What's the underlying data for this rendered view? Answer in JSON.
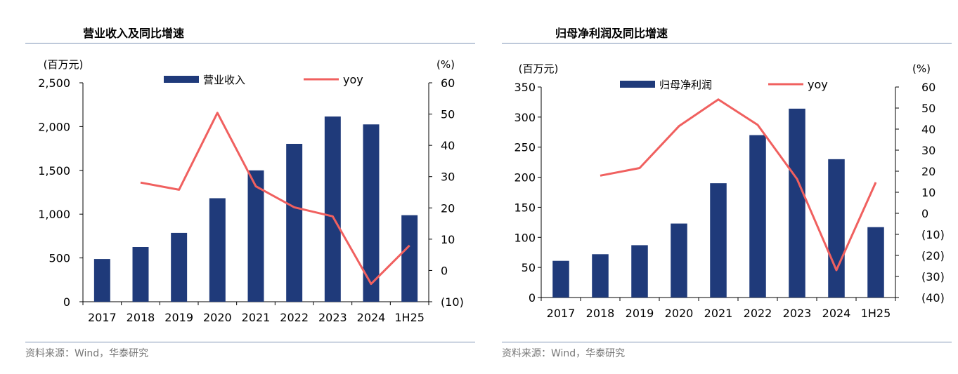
{
  "colors": {
    "bar": "#1f3a7a",
    "line": "#f0605f",
    "axis": "#000000",
    "rule": "#7f95b5",
    "source": "#777777"
  },
  "charts": [
    {
      "title": "营业收入及同比增速",
      "source": "资料来源：Wind，华泰研究",
      "left_unit": "(百万元)",
      "right_unit": "(%)",
      "left_ticks": [
        "0",
        "500",
        "1,000",
        "1,500",
        "2,000",
        "2,500"
      ],
      "right_ticks": [
        "(10)",
        "0",
        "10",
        "20",
        "30",
        "40",
        "50",
        "60"
      ],
      "legend_bar": "营业收入",
      "legend_line": "yoy"
    },
    {
      "title": "归母净利润及同比增速",
      "source": "资料来源：Wind，华泰研究",
      "left_unit": "(百万元)",
      "right_unit": "(%)",
      "left_ticks": [
        "0",
        "50",
        "100",
        "150",
        "200",
        "250",
        "300",
        "350"
      ],
      "right_ticks": [
        "(40)",
        "(30)",
        "(20)",
        "(10)",
        "0",
        "10",
        "20",
        "30",
        "40",
        "50",
        "60"
      ],
      "legend_bar": "归母净利润",
      "legend_line": "yoy"
    }
  ],
  "chart_data": [
    {
      "type": "bar",
      "categories": [
        "2017",
        "2018",
        "2019",
        "2020",
        "2021",
        "2022",
        "2023",
        "2024",
        "1H25"
      ],
      "series": [
        {
          "name": "营业收入",
          "type": "bar",
          "axis": "left",
          "values": [
            488,
            625,
            786,
            1182,
            1500,
            1803,
            2115,
            2025,
            988
          ]
        },
        {
          "name": "yoy",
          "type": "line",
          "axis": "right",
          "values": [
            null,
            28.1,
            25.8,
            50.4,
            26.9,
            20.2,
            17.3,
            -4.3,
            8.0
          ]
        }
      ],
      "ylim_left": [
        0,
        2500
      ],
      "ylim_right": [
        -10,
        60
      ]
    },
    {
      "type": "bar",
      "categories": [
        "2017",
        "2018",
        "2019",
        "2020",
        "2021",
        "2022",
        "2023",
        "2024",
        "1H25"
      ],
      "series": [
        {
          "name": "归母净利润",
          "type": "bar",
          "axis": "left",
          "values": [
            61,
            72,
            87,
            123,
            190,
            270,
            314,
            230,
            117
          ]
        },
        {
          "name": "yoy",
          "type": "line",
          "axis": "right",
          "values": [
            null,
            17.9,
            21.5,
            41.4,
            54.1,
            42.0,
            16.3,
            -27.0,
            14.7
          ]
        }
      ],
      "ylim_left": [
        0,
        350
      ],
      "ylim_right": [
        -40,
        60
      ]
    }
  ]
}
